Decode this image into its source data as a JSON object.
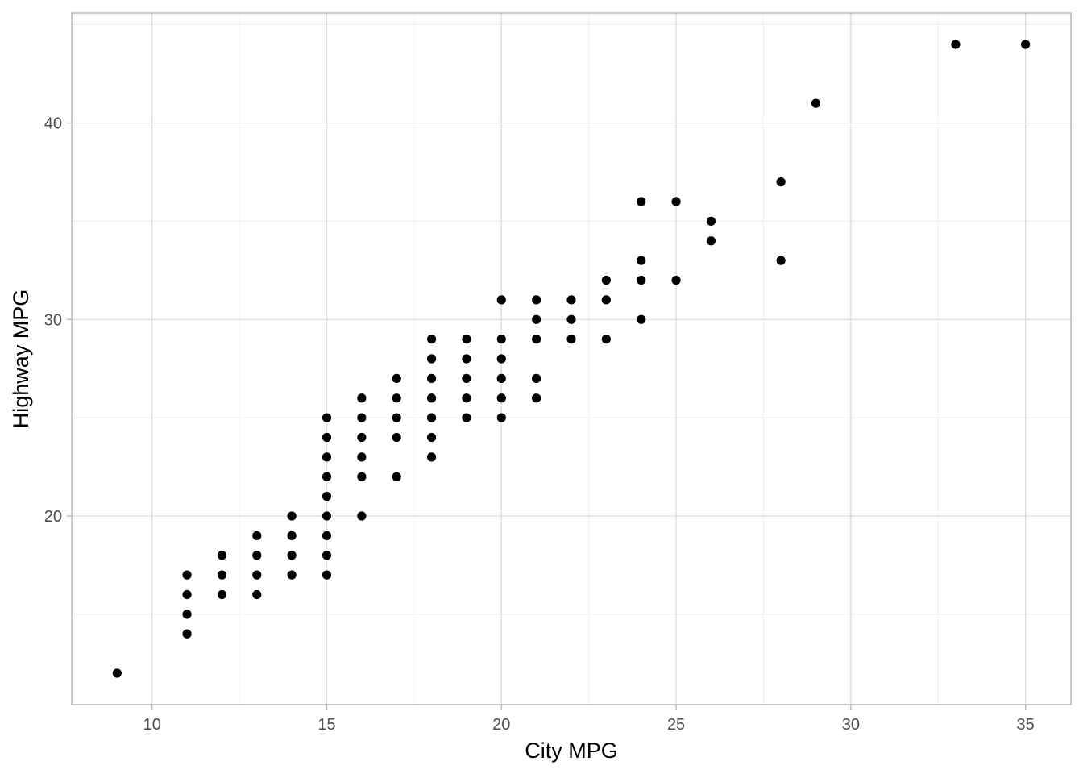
{
  "chart_data": {
    "type": "scatter",
    "xlabel": "City MPG",
    "ylabel": "Highway MPG",
    "xlim": [
      7.7,
      36.3
    ],
    "ylim": [
      10.4,
      45.6
    ],
    "x_ticks": [
      10,
      15,
      20,
      25,
      30,
      35
    ],
    "y_ticks": [
      20,
      30,
      40
    ],
    "grid": true,
    "point_color": "#000000",
    "points": [
      [
        9,
        12
      ],
      [
        11,
        14
      ],
      [
        11,
        15
      ],
      [
        11,
        16
      ],
      [
        11,
        17
      ],
      [
        12,
        16
      ],
      [
        12,
        17
      ],
      [
        12,
        18
      ],
      [
        13,
        16
      ],
      [
        13,
        17
      ],
      [
        13,
        18
      ],
      [
        13,
        19
      ],
      [
        14,
        17
      ],
      [
        14,
        18
      ],
      [
        14,
        19
      ],
      [
        14,
        20
      ],
      [
        15,
        17
      ],
      [
        15,
        18
      ],
      [
        15,
        19
      ],
      [
        15,
        20
      ],
      [
        15,
        21
      ],
      [
        15,
        22
      ],
      [
        15,
        23
      ],
      [
        15,
        24
      ],
      [
        15,
        25
      ],
      [
        16,
        20
      ],
      [
        16,
        22
      ],
      [
        16,
        23
      ],
      [
        16,
        24
      ],
      [
        16,
        25
      ],
      [
        16,
        26
      ],
      [
        17,
        22
      ],
      [
        17,
        24
      ],
      [
        17,
        25
      ],
      [
        17,
        26
      ],
      [
        17,
        27
      ],
      [
        18,
        23
      ],
      [
        18,
        24
      ],
      [
        18,
        25
      ],
      [
        18,
        26
      ],
      [
        18,
        27
      ],
      [
        18,
        28
      ],
      [
        18,
        29
      ],
      [
        19,
        25
      ],
      [
        19,
        26
      ],
      [
        19,
        27
      ],
      [
        19,
        28
      ],
      [
        19,
        29
      ],
      [
        20,
        25
      ],
      [
        20,
        26
      ],
      [
        20,
        27
      ],
      [
        20,
        28
      ],
      [
        20,
        29
      ],
      [
        20,
        31
      ],
      [
        21,
        26
      ],
      [
        21,
        27
      ],
      [
        21,
        29
      ],
      [
        21,
        30
      ],
      [
        21,
        31
      ],
      [
        22,
        29
      ],
      [
        22,
        30
      ],
      [
        22,
        31
      ],
      [
        23,
        29
      ],
      [
        23,
        31
      ],
      [
        23,
        32
      ],
      [
        24,
        30
      ],
      [
        24,
        32
      ],
      [
        24,
        33
      ],
      [
        24,
        36
      ],
      [
        25,
        32
      ],
      [
        25,
        36
      ],
      [
        26,
        34
      ],
      [
        26,
        35
      ],
      [
        28,
        33
      ],
      [
        28,
        37
      ],
      [
        29,
        41
      ],
      [
        33,
        44
      ],
      [
        35,
        44
      ]
    ]
  }
}
